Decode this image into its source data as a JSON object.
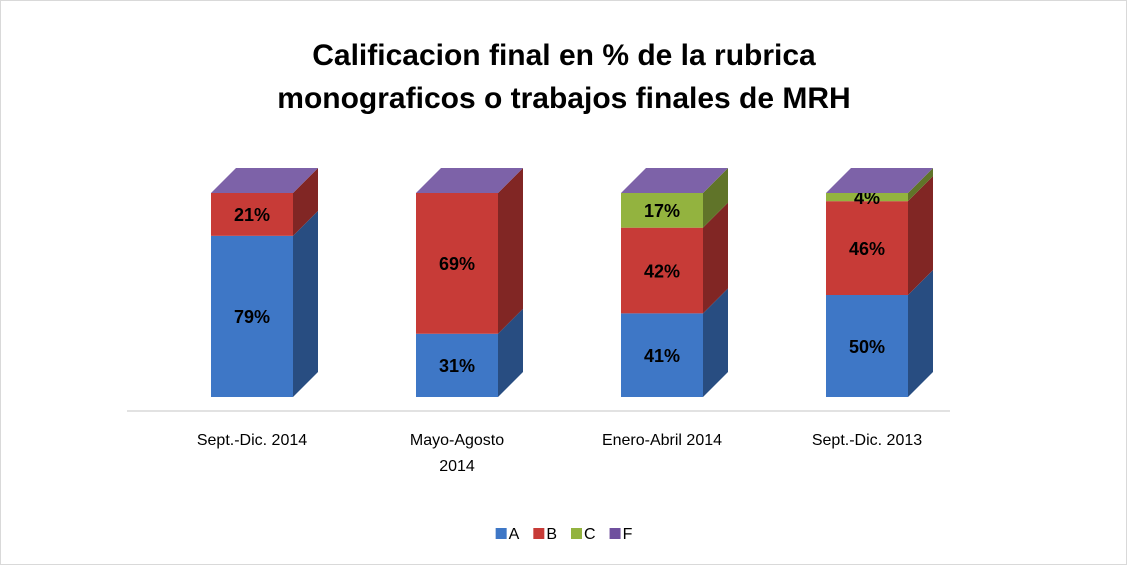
{
  "chart_data": {
    "type": "bar3d_stacked",
    "title": "Calificacion final en % de la rubrica monograficos o trabajos finales de MRH",
    "categories": [
      "Sept.-Dic. 2014",
      "Mayo-Agosto 2014",
      "Enero-Abril 2014",
      "Sept.-Dic. 2013"
    ],
    "series": [
      {
        "name": "A",
        "color": "#3e77c6",
        "values": [
          79,
          31,
          41,
          50
        ],
        "value_labels": [
          "79%",
          "31%",
          "41%",
          "50%"
        ]
      },
      {
        "name": "B",
        "color": "#c73b37",
        "values": [
          21,
          69,
          42,
          46
        ],
        "value_labels": [
          "21%",
          "69%",
          "42%",
          "46%"
        ]
      },
      {
        "name": "C",
        "color": "#93b33f",
        "values": [
          0,
          0,
          17,
          4
        ],
        "value_labels": [
          null,
          null,
          "17%",
          "4%"
        ]
      },
      {
        "name": "F",
        "color": "#6f509e",
        "values": [
          0,
          0,
          0,
          0
        ],
        "value_labels": [
          null,
          null,
          null,
          null
        ]
      }
    ],
    "legend": "bottom"
  }
}
